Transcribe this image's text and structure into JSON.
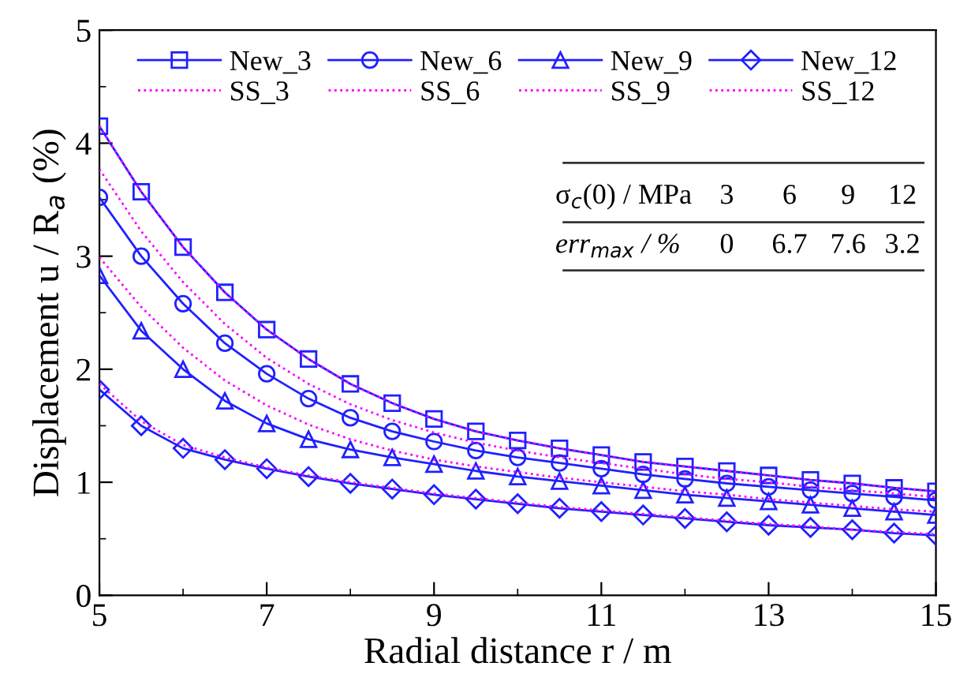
{
  "chart_data": {
    "type": "line",
    "xlabel": "Radial distance r / m",
    "ylabel": "Displacement u / R$_{a}$ (%)",
    "x": [
      5,
      5.5,
      6,
      6.5,
      7,
      7.5,
      8,
      8.5,
      9,
      9.5,
      10,
      10.5,
      11,
      11.5,
      12,
      12.5,
      13,
      13.5,
      14,
      14.5,
      15
    ],
    "xlim": [
      5,
      15
    ],
    "xticks": [
      5,
      7,
      9,
      11,
      13,
      15
    ],
    "ylim": [
      0,
      5
    ],
    "yticks": [
      0,
      1,
      2,
      3,
      4,
      5
    ],
    "grid": false,
    "legend": "top",
    "series": [
      {
        "name": "New_3",
        "color": "#2020ff",
        "marker": "square",
        "line_style": "solid",
        "values": [
          4.15,
          3.57,
          3.08,
          2.68,
          2.35,
          2.09,
          1.87,
          1.7,
          1.56,
          1.45,
          1.37,
          1.3,
          1.24,
          1.18,
          1.14,
          1.1,
          1.06,
          1.02,
          0.99,
          0.95,
          0.92
        ]
      },
      {
        "name": "New_6",
        "color": "#2020ff",
        "marker": "circle",
        "line_style": "solid",
        "values": [
          3.52,
          3.0,
          2.58,
          2.23,
          1.96,
          1.74,
          1.57,
          1.45,
          1.36,
          1.28,
          1.22,
          1.17,
          1.12,
          1.07,
          1.03,
          0.99,
          0.96,
          0.93,
          0.9,
          0.87,
          0.84
        ]
      },
      {
        "name": "New_9",
        "color": "#2020ff",
        "marker": "triangle",
        "line_style": "solid",
        "values": [
          2.83,
          2.34,
          2.0,
          1.72,
          1.52,
          1.38,
          1.29,
          1.22,
          1.16,
          1.1,
          1.05,
          1.01,
          0.97,
          0.93,
          0.89,
          0.86,
          0.83,
          0.8,
          0.77,
          0.74,
          0.71
        ]
      },
      {
        "name": "New_12",
        "color": "#2020ff",
        "marker": "diamond",
        "line_style": "solid",
        "values": [
          1.82,
          1.5,
          1.3,
          1.2,
          1.12,
          1.05,
          0.99,
          0.94,
          0.89,
          0.85,
          0.81,
          0.77,
          0.74,
          0.71,
          0.68,
          0.65,
          0.62,
          0.6,
          0.58,
          0.55,
          0.53
        ]
      },
      {
        "name": "SS_3",
        "color": "#ff00ff",
        "marker": "none",
        "line_style": "dotted",
        "values": [
          4.15,
          3.57,
          3.08,
          2.68,
          2.35,
          2.09,
          1.87,
          1.7,
          1.56,
          1.45,
          1.37,
          1.3,
          1.24,
          1.18,
          1.14,
          1.1,
          1.06,
          1.02,
          0.99,
          0.95,
          0.92
        ]
      },
      {
        "name": "SS_6",
        "color": "#ff00ff",
        "marker": "none",
        "line_style": "dotted",
        "values": [
          3.77,
          3.22,
          2.77,
          2.4,
          2.1,
          1.87,
          1.69,
          1.55,
          1.44,
          1.35,
          1.28,
          1.22,
          1.17,
          1.12,
          1.07,
          1.03,
          1.0,
          0.96,
          0.93,
          0.9,
          0.87
        ]
      },
      {
        "name": "SS_9",
        "color": "#ff00ff",
        "marker": "none",
        "line_style": "dotted",
        "values": [
          2.99,
          2.55,
          2.19,
          1.9,
          1.68,
          1.51,
          1.38,
          1.28,
          1.2,
          1.14,
          1.09,
          1.04,
          1.0,
          0.96,
          0.92,
          0.89,
          0.85,
          0.82,
          0.79,
          0.76,
          0.74
        ]
      },
      {
        "name": "SS_12",
        "color": "#ff00ff",
        "marker": "none",
        "line_style": "dotted",
        "values": [
          1.87,
          1.54,
          1.33,
          1.22,
          1.13,
          1.06,
          1.0,
          0.95,
          0.9,
          0.86,
          0.82,
          0.78,
          0.75,
          0.72,
          0.69,
          0.66,
          0.63,
          0.61,
          0.58,
          0.56,
          0.54
        ]
      }
    ],
    "annotations": [
      "σ$_{c}$(0) / MPa",
      "3",
      "6",
      "9",
      "12",
      "err$_{max}$ / %",
      "0",
      "6.7",
      "7.6",
      "3.2"
    ]
  }
}
